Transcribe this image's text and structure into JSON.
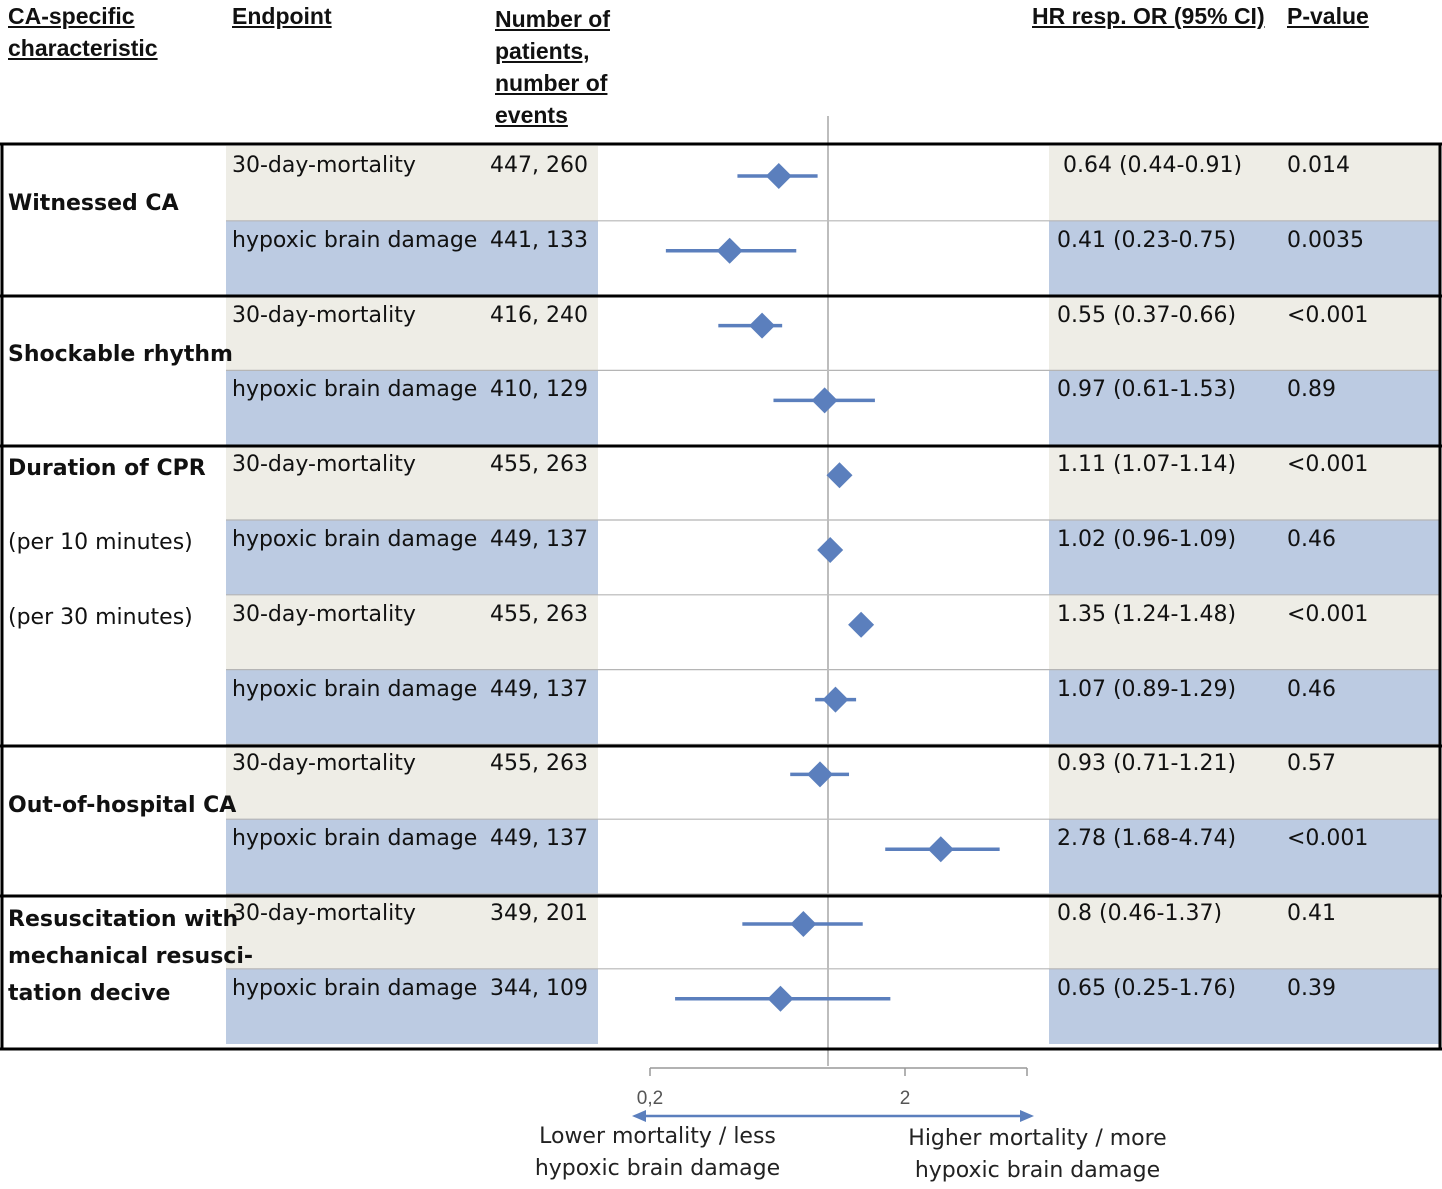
{
  "headers": {
    "characteristic": "CA-specific characteristic",
    "endpoint": "Endpoint",
    "patients": "Number of patients, number of events",
    "hr": "HR resp. OR (95% CI)",
    "pvalue": "P-value"
  },
  "groups": [
    {
      "lines": [
        "Witnessed CA"
      ],
      "bold": [
        true
      ]
    },
    {
      "lines": [
        "Shockable rhythm"
      ],
      "bold": [
        true
      ]
    },
    {
      "lines": [
        "Duration of CPR",
        "(per 10 minutes)",
        "(per 30 minutes)"
      ],
      "bold": [
        true,
        false,
        false
      ]
    },
    {
      "lines": [
        "Out-of-hospital CA"
      ],
      "bold": [
        true
      ]
    },
    {
      "lines": [
        "Resuscitation with",
        "mechanical resusci-",
        "tation decive"
      ],
      "bold": [
        true,
        true,
        true
      ]
    }
  ],
  "rows": [
    {
      "endpoint": "30-day-mortality",
      "patients": "447, 260",
      "hr": "0.64 (0.44-0.91)",
      "p": "0.014"
    },
    {
      "endpoint": "hypoxic brain damage",
      "patients": "441, 133",
      "hr": "0.41 (0.23-0.75)",
      "p": "0.0035"
    },
    {
      "endpoint": "30-day-mortality",
      "patients": "416, 240",
      "hr": "0.55 (0.37-0.66)",
      "p": "<0.001"
    },
    {
      "endpoint": "hypoxic brain damage",
      "patients": "410, 129",
      "hr": "0.97 (0.61-1.53)",
      "p": "0.89"
    },
    {
      "endpoint": "30-day-mortality",
      "patients": "455, 263",
      "hr": "1.11 (1.07-1.14)",
      "p": "<0.001"
    },
    {
      "endpoint": "hypoxic brain damage",
      "patients": "449, 137",
      "hr": "1.02 (0.96-1.09)",
      "p": "0.46"
    },
    {
      "endpoint": "30-day-mortality",
      "patients": "455, 263",
      "hr": "1.35 (1.24-1.48)",
      "p": "<0.001"
    },
    {
      "endpoint": "hypoxic brain damage",
      "patients": "449, 137",
      "hr": "1.07 (0.89-1.29)",
      "p": "0.46"
    },
    {
      "endpoint": "30-day-mortality",
      "patients": "455, 263",
      "hr": "0.93 (0.71-1.21)",
      "p": "0.57"
    },
    {
      "endpoint": "hypoxic brain damage",
      "patients": "449, 137",
      "hr": "2.78 (1.68-4.74)",
      "p": "<0.001"
    },
    {
      "endpoint": "30-day-mortality",
      "patients": "349, 201",
      "hr": "0.8 (0.46-1.37)",
      "p": "0.41"
    },
    {
      "endpoint": "hypoxic brain damage",
      "patients": "344, 109",
      "hr": "0.65 (0.25-1.76)",
      "p": "0.39"
    }
  ],
  "chart_data": {
    "type": "scatter",
    "x_scale": "log",
    "tick_labels": [
      "0,2",
      "2"
    ],
    "reference_line": 1,
    "series": [
      {
        "values": [
          {
            "est": 0.64,
            "lo": 0.44,
            "hi": 0.91
          },
          {
            "est": 0.41,
            "lo": 0.23,
            "hi": 0.75
          },
          {
            "est": 0.55,
            "lo": 0.37,
            "hi": 0.66
          },
          {
            "est": 0.97,
            "lo": 0.61,
            "hi": 1.53
          },
          {
            "est": 1.11,
            "lo": 1.07,
            "hi": 1.14
          },
          {
            "est": 1.02,
            "lo": 0.96,
            "hi": 1.09
          },
          {
            "est": 1.35,
            "lo": 1.24,
            "hi": 1.48
          },
          {
            "est": 1.07,
            "lo": 0.89,
            "hi": 1.29
          },
          {
            "est": 0.93,
            "lo": 0.71,
            "hi": 1.21
          },
          {
            "est": 2.78,
            "lo": 1.68,
            "hi": 4.74
          },
          {
            "est": 0.8,
            "lo": 0.46,
            "hi": 1.37
          },
          {
            "est": 0.65,
            "lo": 0.25,
            "hi": 1.76
          }
        ]
      }
    ],
    "left_annotation": "Lower mortality / less hypoxic brain damage",
    "right_annotation": "Higher mortality / more hypoxic brain damage",
    "marker_color": "#5b7fbd"
  },
  "colors": {
    "beige": "#eeede6",
    "blue": "#bccbe2",
    "marker": "#5b7fbd",
    "border": "#000000"
  }
}
